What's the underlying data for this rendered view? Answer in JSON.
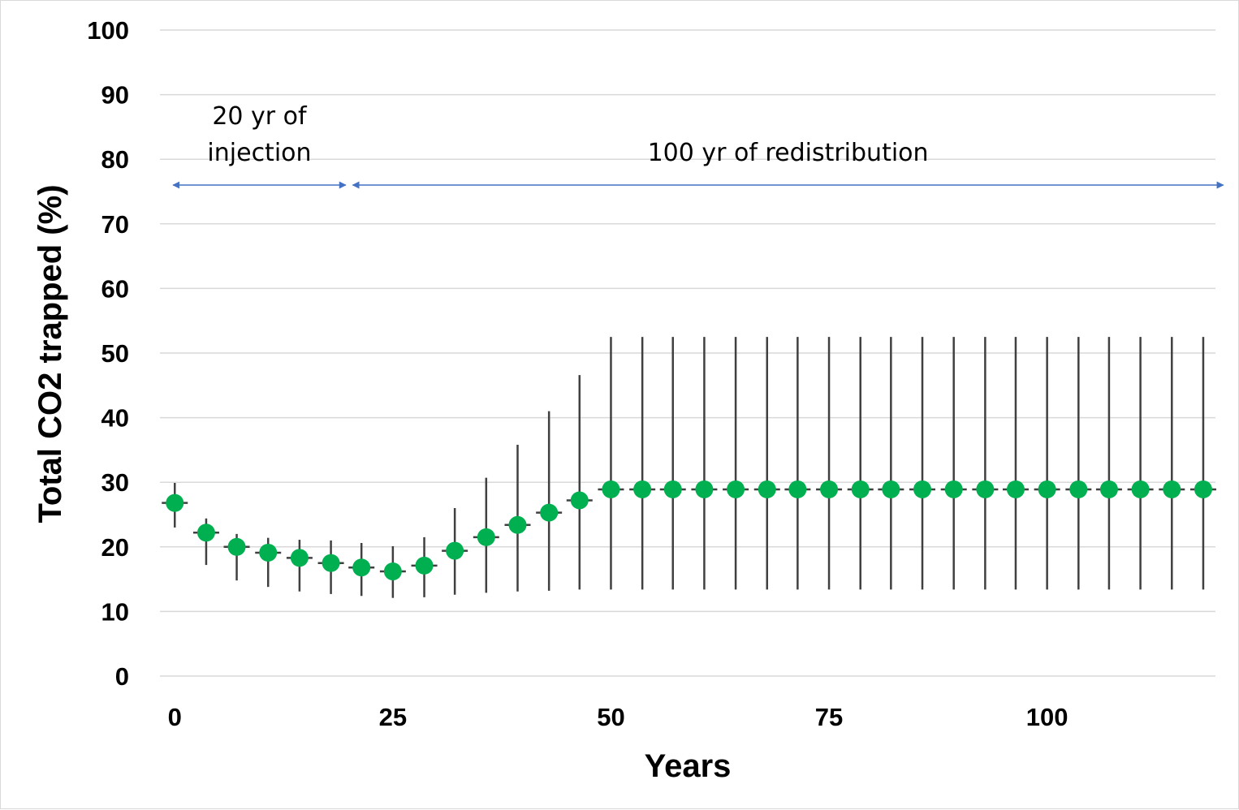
{
  "chart_data": {
    "type": "scatter",
    "title": "",
    "xlabel": "Years",
    "ylabel": "Total CO2 trapped (%)",
    "xlim": [
      -1.7,
      119.3
    ],
    "ylim": [
      0,
      100
    ],
    "x_ticks": [
      0,
      25,
      50,
      75,
      100
    ],
    "y_ticks": [
      0,
      10,
      20,
      30,
      40,
      50,
      60,
      70,
      80,
      90,
      100
    ],
    "grid": true,
    "legend": "none",
    "series": [
      {
        "marker_color": "#00b050",
        "error_bar_color": "#404040",
        "x": [
          0,
          3.6,
          7.1,
          10.7,
          14.3,
          17.9,
          21.4,
          25,
          28.6,
          32.1,
          35.7,
          39.3,
          42.9,
          46.4,
          50,
          53.6,
          57.1,
          60.7,
          64.3,
          67.9,
          71.4,
          75,
          78.6,
          82.1,
          85.7,
          89.3,
          92.9,
          96.4,
          100,
          103.6,
          107.1,
          110.7,
          114.3,
          117.9
        ],
        "y": [
          26.8,
          22.2,
          20,
          19.1,
          18.3,
          17.5,
          16.8,
          16.2,
          17.1,
          19.4,
          21.5,
          23.4,
          25.3,
          27.2,
          28.9,
          28.9,
          28.9,
          28.9,
          28.9,
          28.9,
          28.9,
          28.9,
          28.9,
          28.9,
          28.9,
          28.9,
          28.9,
          28.9,
          28.9,
          28.9,
          28.9,
          28.9,
          28.9,
          28.9
        ],
        "y_low": [
          23,
          17.2,
          14.8,
          13.8,
          13.1,
          12.7,
          12.4,
          12.1,
          12.2,
          12.6,
          12.9,
          13.1,
          13.2,
          13.4,
          13.4,
          13.4,
          13.4,
          13.4,
          13.4,
          13.4,
          13.4,
          13.4,
          13.4,
          13.4,
          13.4,
          13.4,
          13.4,
          13.4,
          13.4,
          13.4,
          13.4,
          13.4,
          13.4,
          13.4
        ],
        "y_high": [
          29.9,
          24.4,
          22,
          21.4,
          21.1,
          21,
          20.6,
          20.1,
          21.5,
          26,
          30.7,
          35.8,
          41,
          46.6,
          52.5,
          52.5,
          52.5,
          52.5,
          52.5,
          52.5,
          52.5,
          52.5,
          52.5,
          52.5,
          52.5,
          52.5,
          52.5,
          52.5,
          52.5,
          52.5,
          52.5,
          52.5,
          52.5,
          52.5
        ]
      }
    ],
    "annotations": [
      {
        "lines": [
          "20 yr of",
          "injection"
        ],
        "span": [
          -0.2,
          19.6
        ],
        "y": 76
      },
      {
        "lines": [
          "100 yr of redistribution"
        ],
        "span": [
          20.4,
          120.2
        ],
        "y": 76
      }
    ],
    "colors": {
      "arrow": "#4472c4",
      "grid": "#d9d9d9"
    }
  }
}
